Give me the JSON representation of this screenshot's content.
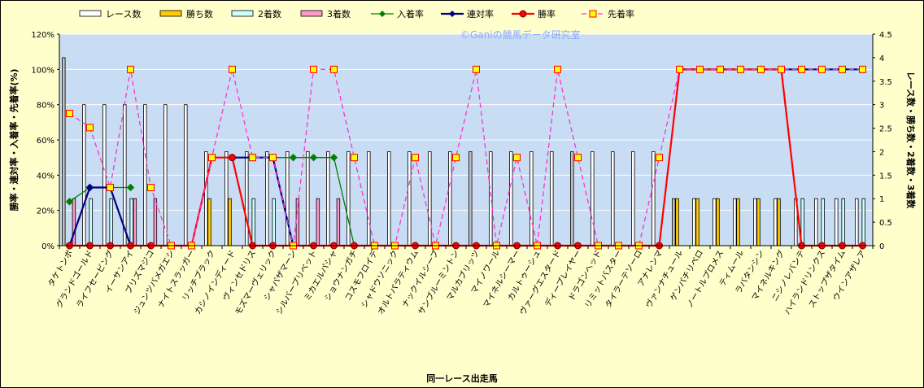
{
  "chart_data": {
    "type": "bar",
    "title": "",
    "watermark": "©Ganiの競馬データ研究室",
    "xlabel": "同一レース出走馬",
    "ylabel_left": "勝率・連対率・入着率・先着率(%)",
    "ylabel_right": "レース数・勝ち数・2着数・3着数",
    "ylim_left": [
      0,
      120
    ],
    "ylim_right": [
      0,
      4.5
    ],
    "yticks_left": [
      "0%",
      "20%",
      "40%",
      "60%",
      "80%",
      "100%",
      "120%"
    ],
    "yticks_right": [
      "0",
      "0.5",
      "1",
      "1.5",
      "2",
      "2.5",
      "3",
      "3.5",
      "4",
      "4.5"
    ],
    "legend_position": "top",
    "grid": true,
    "colors": {
      "plot_bg": "#c8dcf4",
      "grid": "#ffffff",
      "races": "#ffffff",
      "wins": "#ffcc00",
      "second": "#ccffff",
      "third": "#ff99cc",
      "placed_rate": "#008000",
      "rentai_rate": "#000080",
      "win_rate": "#ff0000",
      "sentyaku_rate": "#ff33cc",
      "marker_fill": "#ffff00"
    },
    "categories": [
      "タケトンボ",
      "グランドゴールド",
      "ライフセービング",
      "イーサンアイ",
      "ブリズマジコ",
      "ジュンツバメガエシ",
      "ナイトスラッガー",
      "リッチブラック",
      "カシノインディード",
      "ヴィンセドリス",
      "モズマーヴェリック",
      "シャバザマーン",
      "シルバープリベット",
      "ミカエルパシャ",
      "ショウナンガチ",
      "コスモフロイデ",
      "シャドウソニック",
      "オルトパラティウム",
      "ナックイルシーブ",
      "サンブルーミントン",
      "マルカブリッツ",
      "マイノワール",
      "マイネルシーマー",
      "カルトゥーシュ",
      "ヴァーグエスタード",
      "ディープレイヤー",
      "ドラゴンヘッド",
      "リミットバスター",
      "タイラーテソーロ",
      "アナレンマ",
      "ヴァンナチュール",
      "ゲンパチリベロ",
      "ノートルプロメス",
      "ティムール",
      "ラバタンシン",
      "マイネルキング",
      "ニシノレバンテ",
      "ハイランドリンクス",
      "ストップザタイム",
      "ウインアザレア"
    ],
    "series": [
      {
        "name": "レース数",
        "axis": "right",
        "values": [
          4,
          3,
          3,
          3,
          3,
          3,
          3,
          2,
          2,
          2,
          2,
          2,
          2,
          2,
          2,
          2,
          2,
          2,
          2,
          2,
          2,
          2,
          2,
          2,
          2,
          2,
          2,
          2,
          2,
          2,
          1,
          1,
          1,
          1,
          1,
          1,
          1,
          1,
          1,
          1
        ]
      },
      {
        "name": "勝ち数",
        "axis": "right",
        "values": [
          0,
          0,
          0,
          0,
          0,
          0,
          0,
          1,
          1,
          0,
          0,
          0,
          0,
          0,
          0,
          0,
          0,
          0,
          0,
          0,
          0,
          0,
          0,
          0,
          0,
          0,
          0,
          0,
          0,
          0,
          1,
          1,
          1,
          1,
          1,
          1,
          0,
          0,
          0,
          0
        ]
      },
      {
        "name": "2着数",
        "axis": "right",
        "values": [
          0,
          1,
          1,
          1,
          0,
          0,
          0,
          0,
          0,
          1,
          1,
          0,
          0,
          0,
          0,
          0,
          0,
          0,
          0,
          0,
          0,
          0,
          0,
          0,
          0,
          0,
          0,
          0,
          0,
          0,
          0,
          0,
          0,
          0,
          0,
          0,
          1,
          1,
          1,
          1
        ]
      },
      {
        "name": "3着数",
        "axis": "right",
        "values": [
          1,
          0,
          0,
          1,
          1,
          0,
          0,
          0,
          0,
          0,
          0,
          1,
          1,
          1,
          0,
          0,
          0,
          0,
          0,
          0,
          0,
          0,
          0,
          0,
          0,
          0,
          0,
          0,
          0,
          0,
          0,
          0,
          0,
          0,
          0,
          0,
          0,
          0,
          0,
          0
        ]
      },
      {
        "name": "入着率",
        "axis": "left",
        "values": [
          25,
          33,
          33,
          33,
          null,
          null,
          null,
          null,
          50,
          50,
          50,
          50,
          50,
          50,
          0,
          null,
          null,
          null,
          null,
          null,
          null,
          null,
          null,
          null,
          null,
          null,
          null,
          null,
          null,
          null,
          null,
          null,
          null,
          null,
          null,
          null,
          null,
          null,
          null,
          null
        ]
      },
      {
        "name": "連対率",
        "axis": "left",
        "values": [
          0,
          33,
          33,
          0,
          null,
          null,
          null,
          null,
          50,
          50,
          50,
          0,
          null,
          null,
          null,
          null,
          null,
          null,
          null,
          null,
          null,
          null,
          null,
          null,
          null,
          null,
          null,
          null,
          null,
          null,
          100,
          100,
          100,
          100,
          100,
          100,
          100,
          100,
          100,
          100
        ]
      },
      {
        "name": "勝率",
        "axis": "left",
        "values": [
          0,
          0,
          0,
          0,
          0,
          0,
          0,
          50,
          50,
          0,
          0,
          0,
          0,
          0,
          0,
          0,
          0,
          0,
          0,
          0,
          0,
          0,
          0,
          0,
          0,
          0,
          0,
          0,
          0,
          0,
          100,
          100,
          100,
          100,
          100,
          100,
          0,
          0,
          0,
          0
        ]
      },
      {
        "name": "先着率",
        "axis": "left",
        "values": [
          75,
          67,
          33,
          100,
          33,
          0,
          0,
          50,
          100,
          50,
          50,
          0,
          100,
          100,
          50,
          0,
          0,
          50,
          0,
          50,
          100,
          0,
          50,
          0,
          100,
          50,
          0,
          0,
          0,
          50,
          100,
          100,
          100,
          100,
          100,
          100,
          100,
          100,
          100,
          100
        ]
      }
    ]
  }
}
